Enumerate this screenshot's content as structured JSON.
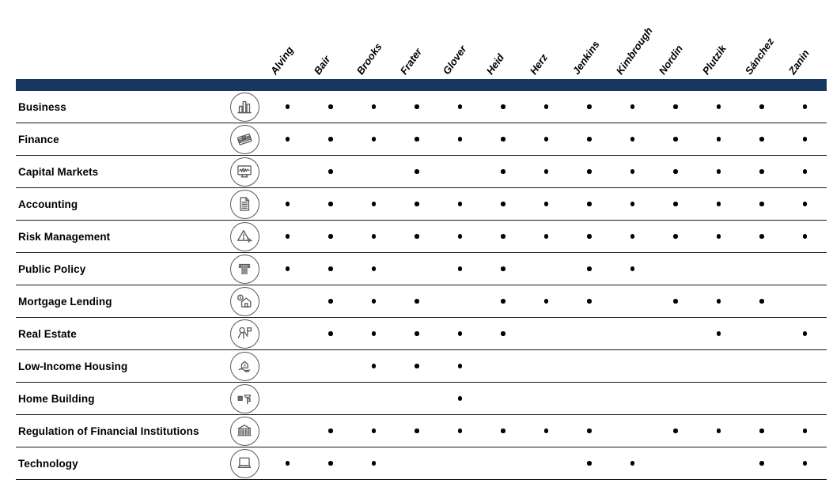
{
  "colors": {
    "accent_bar": "#17375E",
    "row_border": "#161616",
    "dot": "#000000",
    "icon_stroke": "#595959",
    "label_text": "#000000"
  },
  "chart_data": {
    "type": "table",
    "title": "",
    "legend_position": "none",
    "dot_symbol": "•",
    "columns": [
      "Alving",
      "Bair",
      "Brooks",
      "Frater",
      "Glover",
      "Heid",
      "Herz",
      "Jenkins",
      "Kimbrough",
      "Nordin",
      "Plutzik",
      "Sánchez",
      "Zanin"
    ],
    "rows": [
      {
        "label": "Business",
        "icon": "bar-chart-icon",
        "dots": [
          1,
          1,
          1,
          1,
          1,
          1,
          1,
          1,
          1,
          1,
          1,
          1,
          1
        ]
      },
      {
        "label": "Finance",
        "icon": "money-stack-icon",
        "dots": [
          1,
          1,
          1,
          1,
          1,
          1,
          1,
          1,
          1,
          1,
          1,
          1,
          1
        ]
      },
      {
        "label": "Capital Markets",
        "icon": "stock-monitor-icon",
        "dots": [
          0,
          1,
          0,
          1,
          0,
          1,
          1,
          1,
          1,
          1,
          1,
          1,
          1
        ]
      },
      {
        "label": "Accounting",
        "icon": "ledger-document-icon",
        "dots": [
          1,
          1,
          1,
          1,
          1,
          1,
          1,
          1,
          1,
          1,
          1,
          1,
          1
        ]
      },
      {
        "label": "Risk Management",
        "icon": "warning-triangle-icon",
        "dots": [
          1,
          1,
          1,
          1,
          1,
          1,
          1,
          1,
          1,
          1,
          1,
          1,
          1
        ]
      },
      {
        "label": "Public Policy",
        "icon": "pillar-icon",
        "dots": [
          1,
          1,
          1,
          0,
          1,
          1,
          0,
          1,
          1,
          0,
          0,
          0,
          0
        ]
      },
      {
        "label": "Mortgage Lending",
        "icon": "house-dollar-icon",
        "dots": [
          0,
          1,
          1,
          1,
          0,
          1,
          1,
          1,
          0,
          1,
          1,
          1,
          0
        ]
      },
      {
        "label": "Real Estate",
        "icon": "flag-pin-icon",
        "dots": [
          0,
          1,
          1,
          1,
          1,
          1,
          0,
          0,
          0,
          0,
          1,
          0,
          1
        ]
      },
      {
        "label": "Low-Income Housing",
        "icon": "house-hand-icon",
        "dots": [
          0,
          0,
          1,
          1,
          1,
          0,
          0,
          0,
          0,
          0,
          0,
          0,
          0
        ]
      },
      {
        "label": "Home Building",
        "icon": "hammer-icon",
        "dots": [
          0,
          0,
          0,
          0,
          1,
          0,
          0,
          0,
          0,
          0,
          0,
          0,
          0
        ]
      },
      {
        "label": "Regulation of Financial Institutions",
        "icon": "bank-icon",
        "dots": [
          0,
          1,
          1,
          1,
          1,
          1,
          1,
          1,
          0,
          1,
          1,
          1,
          1
        ]
      },
      {
        "label": "Technology",
        "icon": "laptop-icon",
        "dots": [
          1,
          1,
          1,
          0,
          0,
          0,
          0,
          1,
          1,
          0,
          0,
          1,
          1
        ]
      }
    ]
  }
}
